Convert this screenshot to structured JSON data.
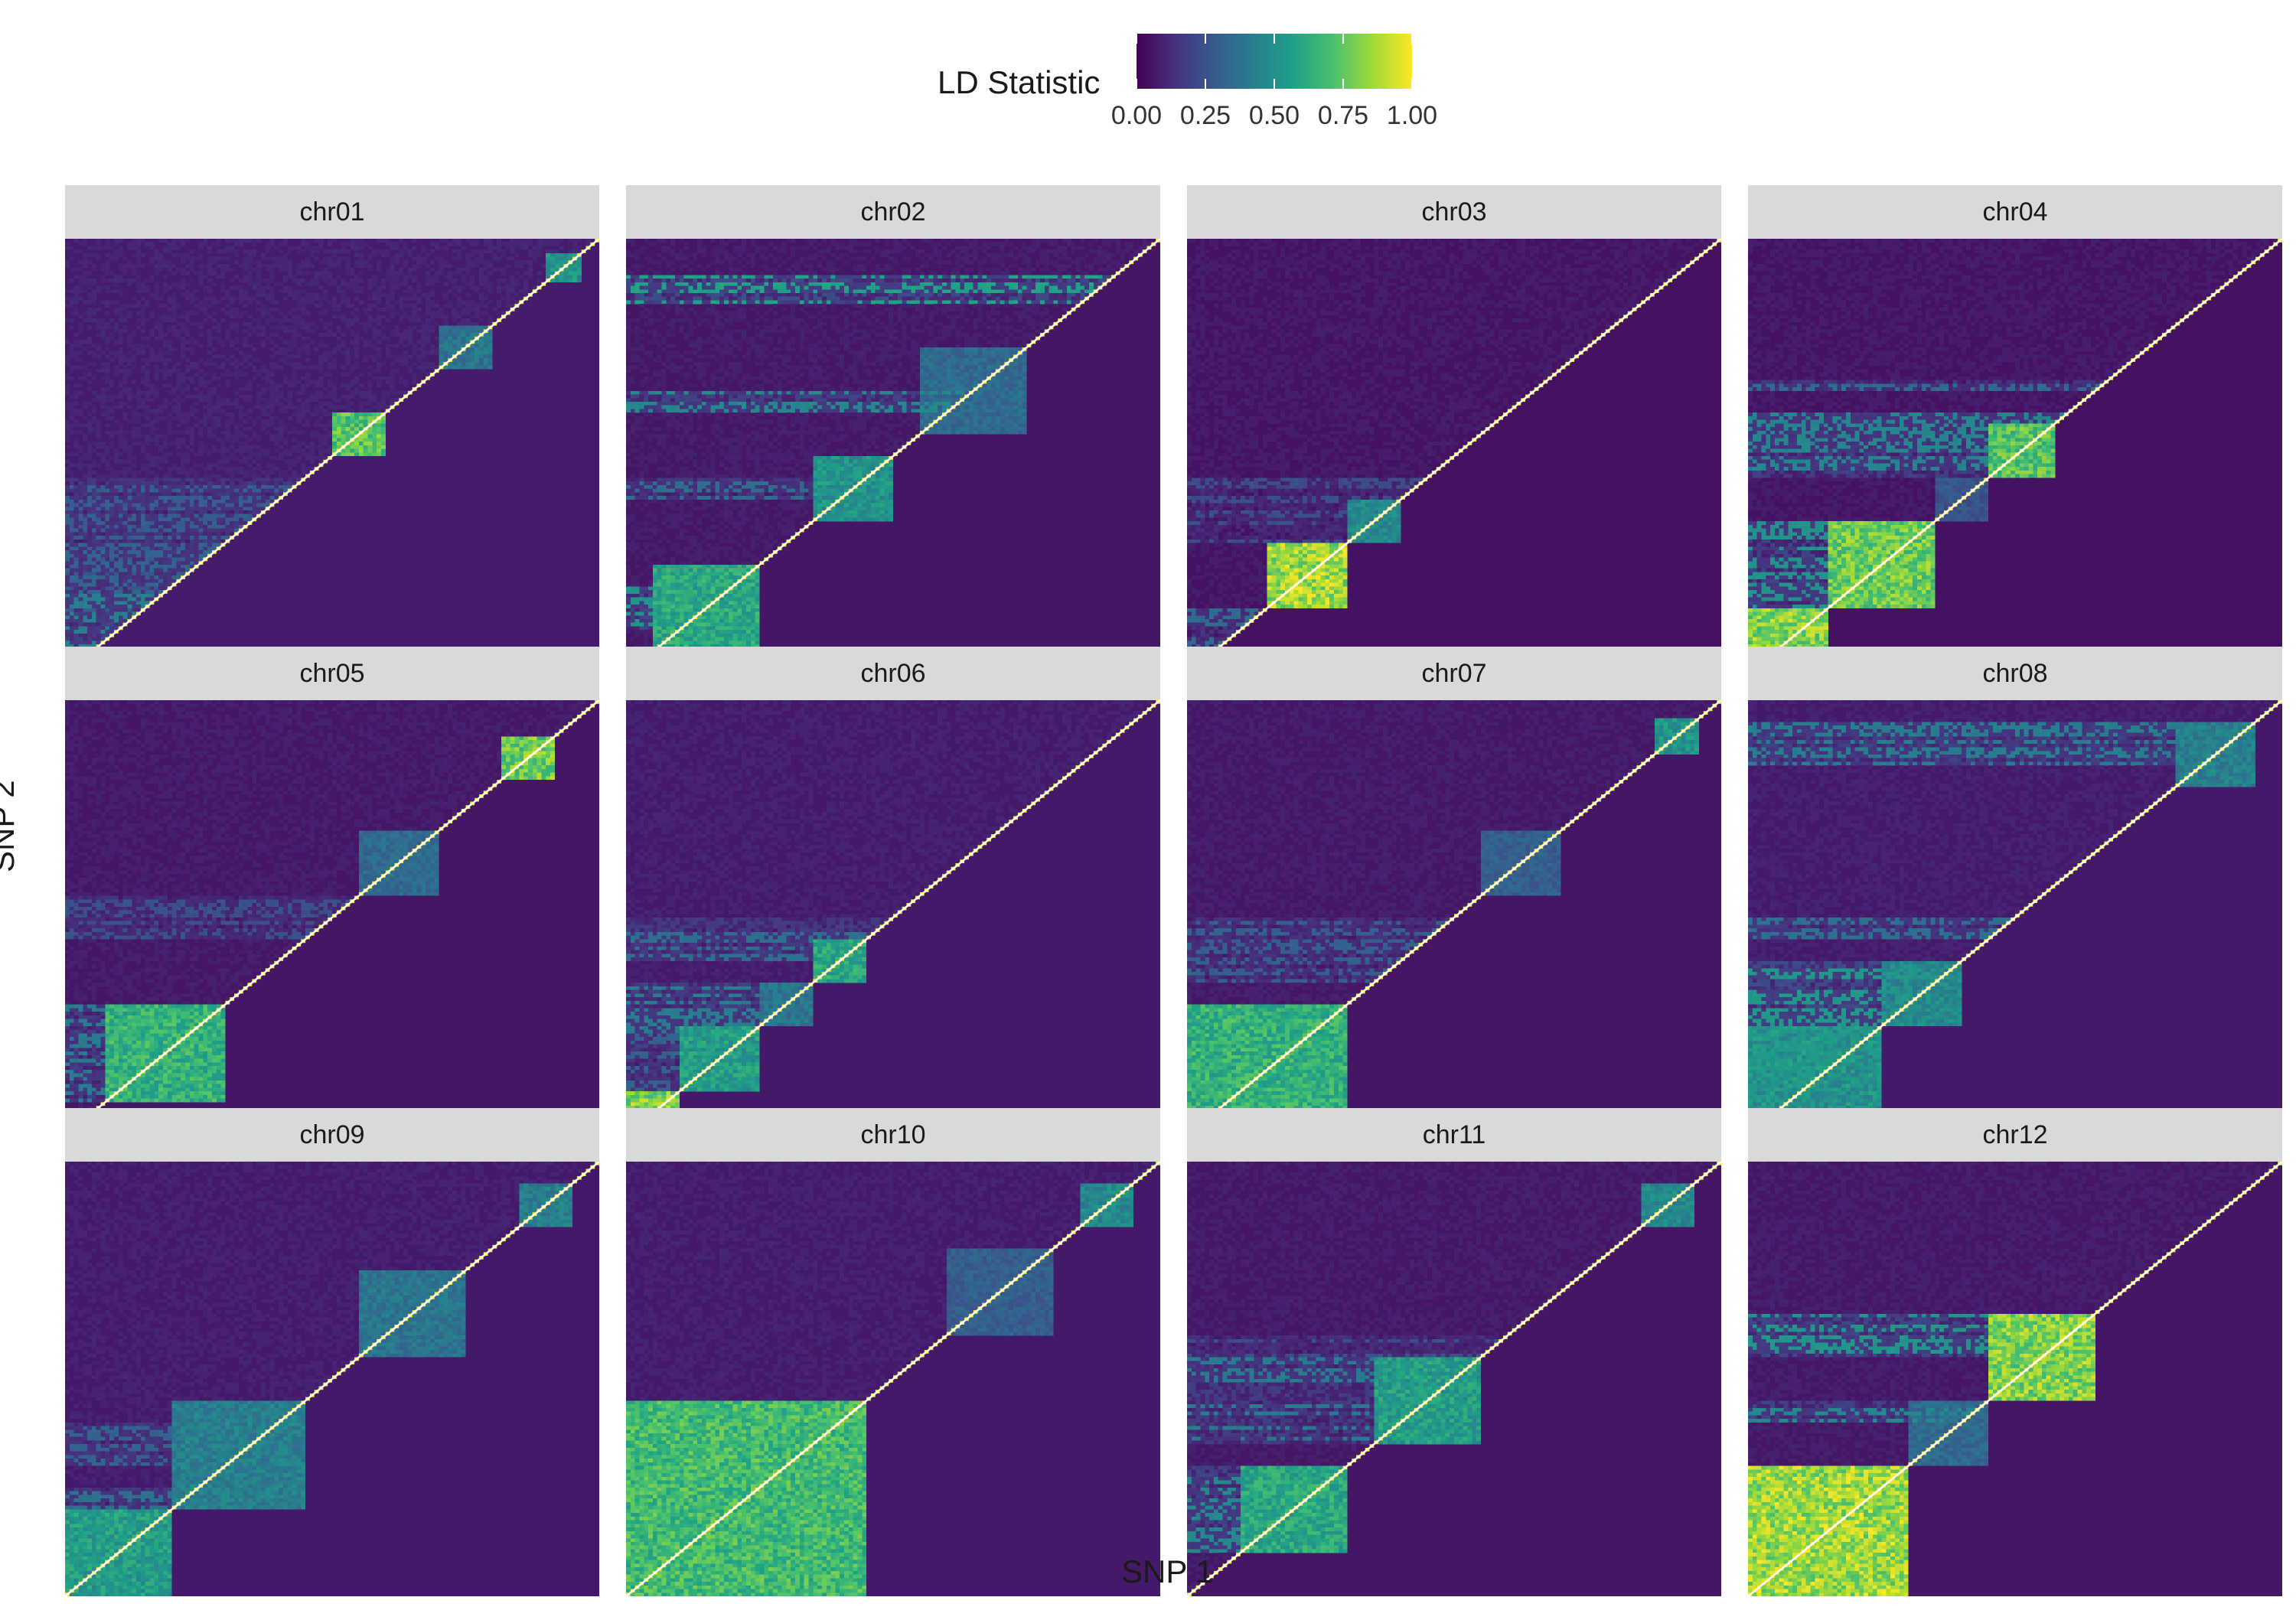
{
  "chart_data": {
    "type": "heatmap",
    "title": "",
    "xlabel": "SNP 1",
    "ylabel": "SNP 2",
    "facet_by": "chromosome",
    "grid": false,
    "legend": {
      "title": "LD Statistic",
      "placement": "top",
      "range": [
        0,
        1
      ],
      "ticks": [
        "0.00",
        "0.25",
        "0.50",
        "0.75",
        "1.00"
      ],
      "colormap": "viridis",
      "colors": [
        "#440154",
        "#46327e",
        "#365c8d",
        "#277f8e",
        "#1fa187",
        "#4ac16d",
        "#9fda3a",
        "#fde725"
      ]
    },
    "diagonal_color": "#ffffff",
    "panels": [
      {
        "name": "chr01",
        "n_snps": 120,
        "blocks": [
          [
            0.5,
            0.6,
            0.85
          ],
          [
            0.7,
            0.8,
            0.45
          ],
          [
            0.9,
            0.97,
            0.6
          ]
        ],
        "bands": [
          [
            0.02,
            0.05,
            0.2
          ],
          [
            0.1,
            0.4,
            0.3
          ],
          [
            0.05,
            0.45,
            0.35
          ],
          [
            0.1,
            0.3,
            0.4
          ],
          [
            0.05,
            0.2,
            0.6
          ]
        ],
        "bg": 0.08
      },
      {
        "name": "chr02",
        "n_snps": 120,
        "blocks": [
          [
            0.0,
            0.05,
            0.9
          ],
          [
            0.05,
            0.25,
            0.7
          ],
          [
            0.35,
            0.5,
            0.6
          ],
          [
            0.55,
            0.75,
            0.4
          ]
        ],
        "bands": [
          [
            0.02,
            0.04,
            0.9
          ],
          [
            0.1,
            0.2,
            0.8
          ],
          [
            0.6,
            0.65,
            0.7
          ],
          [
            0.85,
            0.92,
            0.9
          ],
          [
            0.4,
            0.45,
            0.5
          ]
        ],
        "bg": 0.06
      },
      {
        "name": "chr03",
        "n_snps": 120,
        "blocks": [
          [
            0.15,
            0.3,
            1.0
          ],
          [
            0.3,
            0.4,
            0.55
          ]
        ],
        "bands": [
          [
            0.05,
            0.15,
            0.5
          ],
          [
            0.3,
            0.45,
            0.3
          ]
        ],
        "bg": 0.05
      },
      {
        "name": "chr04",
        "n_snps": 120,
        "blocks": [
          [
            0.0,
            0.15,
            0.95
          ],
          [
            0.15,
            0.35,
            0.9
          ],
          [
            0.45,
            0.58,
            0.85
          ],
          [
            0.35,
            0.45,
            0.3
          ]
        ],
        "bands": [
          [
            0.0,
            0.35,
            0.8
          ],
          [
            0.45,
            0.6,
            0.7
          ],
          [
            0.65,
            0.68,
            0.5
          ]
        ],
        "bg": 0.05
      },
      {
        "name": "chr05",
        "n_snps": 120,
        "blocks": [
          [
            0.08,
            0.3,
            0.75
          ],
          [
            0.82,
            0.92,
            0.9
          ],
          [
            0.55,
            0.7,
            0.4
          ]
        ],
        "bands": [
          [
            0.08,
            0.3,
            0.6
          ],
          [
            0.45,
            0.55,
            0.3
          ]
        ],
        "bg": 0.06
      },
      {
        "name": "chr06",
        "n_snps": 120,
        "blocks": [
          [
            0.0,
            0.1,
            0.95
          ],
          [
            0.1,
            0.25,
            0.65
          ],
          [
            0.35,
            0.45,
            0.7
          ],
          [
            0.25,
            0.35,
            0.45
          ]
        ],
        "bands": [
          [
            0.0,
            0.3,
            0.4
          ],
          [
            0.2,
            0.35,
            0.6
          ],
          [
            0.4,
            0.5,
            0.5
          ]
        ],
        "bg": 0.07
      },
      {
        "name": "chr07",
        "n_snps": 120,
        "blocks": [
          [
            0.0,
            0.3,
            0.75
          ],
          [
            0.55,
            0.7,
            0.35
          ],
          [
            0.88,
            0.96,
            0.6
          ]
        ],
        "bands": [
          [
            0.0,
            0.3,
            0.7
          ],
          [
            0.35,
            0.5,
            0.4
          ]
        ],
        "bg": 0.06
      },
      {
        "name": "chr08",
        "n_snps": 120,
        "blocks": [
          [
            0.0,
            0.25,
            0.6
          ],
          [
            0.25,
            0.4,
            0.55
          ],
          [
            0.8,
            0.95,
            0.5
          ]
        ],
        "bands": [
          [
            0.0,
            0.4,
            0.8
          ],
          [
            0.45,
            0.5,
            0.5
          ],
          [
            0.85,
            0.95,
            0.6
          ]
        ],
        "bg": 0.07
      },
      {
        "name": "chr09",
        "n_snps": 120,
        "blocks": [
          [
            0.0,
            0.2,
            0.65
          ],
          [
            0.2,
            0.45,
            0.5
          ],
          [
            0.55,
            0.75,
            0.45
          ],
          [
            0.85,
            0.95,
            0.5
          ]
        ],
        "bands": [
          [
            0.0,
            0.25,
            0.5
          ],
          [
            0.3,
            0.4,
            0.4
          ]
        ],
        "bg": 0.07
      },
      {
        "name": "chr10",
        "n_snps": 120,
        "blocks": [
          [
            0.0,
            0.45,
            0.8
          ],
          [
            0.6,
            0.8,
            0.35
          ],
          [
            0.85,
            0.95,
            0.55
          ]
        ],
        "bands": [
          [
            0.0,
            0.45,
            0.8
          ],
          [
            0.3,
            0.35,
            0.6
          ]
        ],
        "bg": 0.07
      },
      {
        "name": "chr11",
        "n_snps": 120,
        "blocks": [
          [
            0.1,
            0.3,
            0.7
          ],
          [
            0.35,
            0.55,
            0.65
          ],
          [
            0.85,
            0.95,
            0.55
          ]
        ],
        "bands": [
          [
            0.1,
            0.3,
            0.7
          ],
          [
            0.35,
            0.55,
            0.6
          ],
          [
            0.5,
            0.6,
            0.3
          ]
        ],
        "bg": 0.06
      },
      {
        "name": "chr12",
        "n_snps": 120,
        "blocks": [
          [
            0.0,
            0.3,
            1.0
          ],
          [
            0.3,
            0.45,
            0.4
          ],
          [
            0.45,
            0.65,
            0.95
          ]
        ],
        "bands": [
          [
            0.0,
            0.3,
            0.9
          ],
          [
            0.4,
            0.45,
            0.7
          ],
          [
            0.55,
            0.65,
            0.8
          ]
        ],
        "bg": 0.06
      }
    ]
  }
}
